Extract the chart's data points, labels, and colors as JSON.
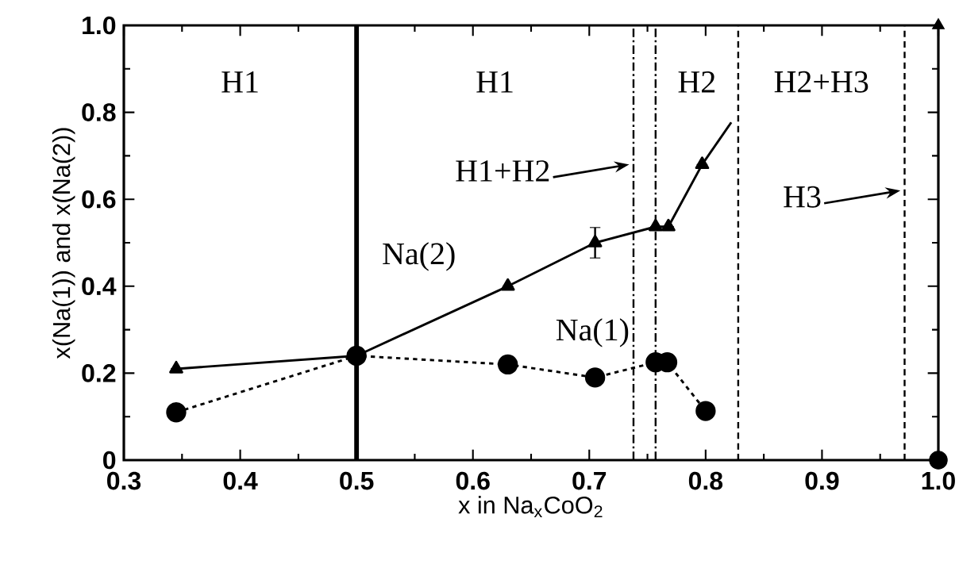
{
  "chart_data": {
    "type": "line",
    "xlabel": "x in Na$_{x}$CoO$_{2}$",
    "ylabel": "x(Na(1)) and x(Na(2))",
    "xlim": [
      0.3,
      1.0
    ],
    "ylim": [
      0,
      1.0
    ],
    "xticks": [
      0.3,
      0.4,
      0.5,
      0.6,
      0.7,
      0.8,
      0.9,
      {
        "value": 1.0,
        "label": "1.0"
      }
    ],
    "yticks": [
      0,
      0.2,
      0.4,
      0.6,
      0.8,
      {
        "value": 1.0,
        "label": "1.0"
      }
    ],
    "series": [
      {
        "name": "Na(2)",
        "color": "#000000",
        "marker": "triangle",
        "line_style": "solid",
        "x": [
          0.345,
          0.5,
          0.63,
          0.705,
          0.757,
          0.768,
          0.797
        ],
        "values": [
          0.21,
          0.24,
          0.4,
          0.5,
          0.537,
          0.537,
          0.68
        ],
        "errors": [
          null,
          null,
          null,
          0.035,
          null,
          null,
          null
        ]
      },
      {
        "color": "#000000",
        "marker": "none",
        "line_style": "solid",
        "x": [
          0.797,
          0.822
        ],
        "values": [
          0.68,
          0.777
        ]
      },
      {
        "type": "scatter",
        "color": "#000000",
        "marker": "triangle",
        "x": [
          1.0
        ],
        "values": [
          1.0
        ]
      },
      {
        "name": "Na(1)",
        "color": "#000000",
        "marker": "circle",
        "line_style": "dotted",
        "x": [
          0.345,
          0.5,
          0.63,
          0.705,
          0.757,
          0.767,
          0.8
        ],
        "values": [
          0.11,
          0.24,
          0.22,
          0.19,
          0.225,
          0.225,
          0.113
        ]
      },
      {
        "type": "scatter",
        "color": "#000000",
        "marker": "circle",
        "x": [
          1.0
        ],
        "values": [
          0.0
        ]
      }
    ],
    "ref_lines": [
      {
        "axis": "x",
        "value": 0.5,
        "line_style": "solid",
        "color": "#000000"
      },
      {
        "axis": "x",
        "value": 0.738,
        "line_style": "dashdot",
        "color": "#000000"
      },
      {
        "axis": "x",
        "value": 0.757,
        "line_style": "dashdot",
        "color": "#000000"
      },
      {
        "axis": "x",
        "value": 0.828,
        "line_style": "dashed",
        "color": "#000000"
      },
      {
        "axis": "x",
        "value": 0.971,
        "line_style": "dashed",
        "color": "#000000"
      }
    ],
    "annotations": [
      "H1",
      "H1",
      "H2",
      "H2+H3",
      {
        "text": "H1+H2",
        "x": 0.738,
        "y": 0.68
      },
      {
        "text": "H3",
        "x": 0.971,
        "y": 0.62
      }
    ]
  }
}
